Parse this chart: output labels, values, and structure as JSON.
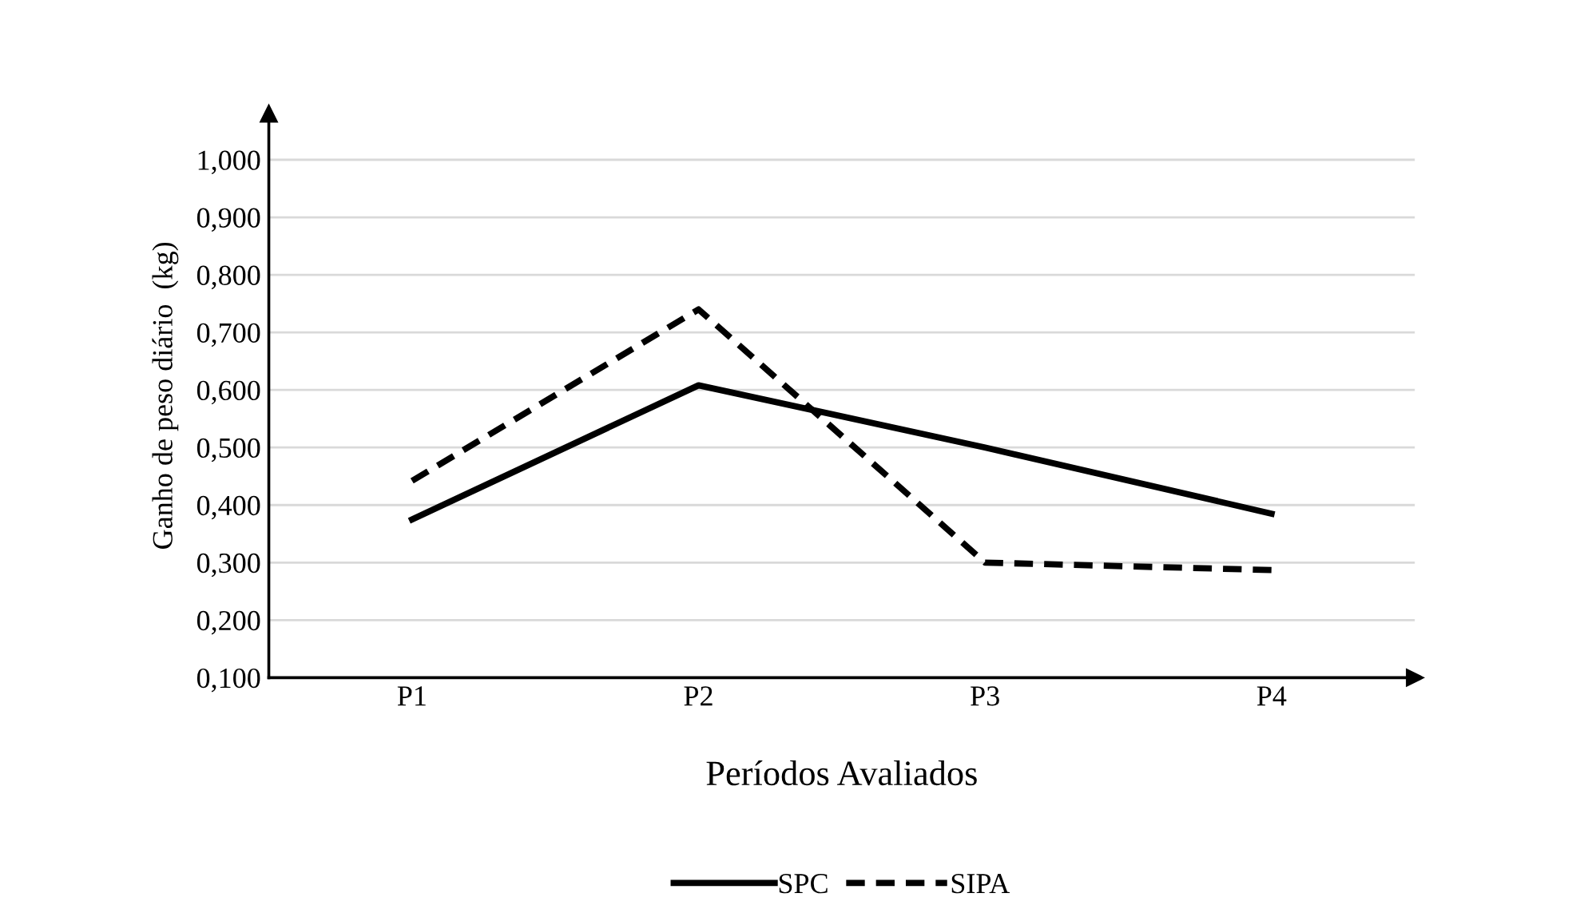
{
  "chart_data": {
    "type": "line",
    "xlabel": "Períodos Avaliados",
    "ylabel": "Ganho de peso diário  (kg)",
    "categories": [
      "P1",
      "P2",
      "P3",
      "P4"
    ],
    "series": [
      {
        "name": "SPC",
        "color": "#000000",
        "line_style": "solid",
        "values": [
          0.375,
          0.608,
          0.5,
          0.385
        ]
      },
      {
        "name": "SIPA",
        "color": "#000000",
        "line_style": "dashed",
        "values": [
          0.442,
          0.74,
          0.3,
          0.287
        ]
      }
    ],
    "ylim": [
      0.1,
      1.08
    ],
    "yticks": [
      {
        "value": 0.1,
        "label": "0,100"
      },
      {
        "value": 0.2,
        "label": "0,200"
      },
      {
        "value": 0.3,
        "label": "0,300"
      },
      {
        "value": 0.4,
        "label": "0,400"
      },
      {
        "value": 0.5,
        "label": "0,500"
      },
      {
        "value": 0.6,
        "label": "0,600"
      },
      {
        "value": 0.7,
        "label": "0,700"
      },
      {
        "value": 0.8,
        "label": "0,800"
      },
      {
        "value": 0.9,
        "label": "0,900"
      },
      {
        "value": 1.0,
        "label": "1,000"
      }
    ],
    "grid": "y",
    "legend": "bottom",
    "marker": "none"
  }
}
